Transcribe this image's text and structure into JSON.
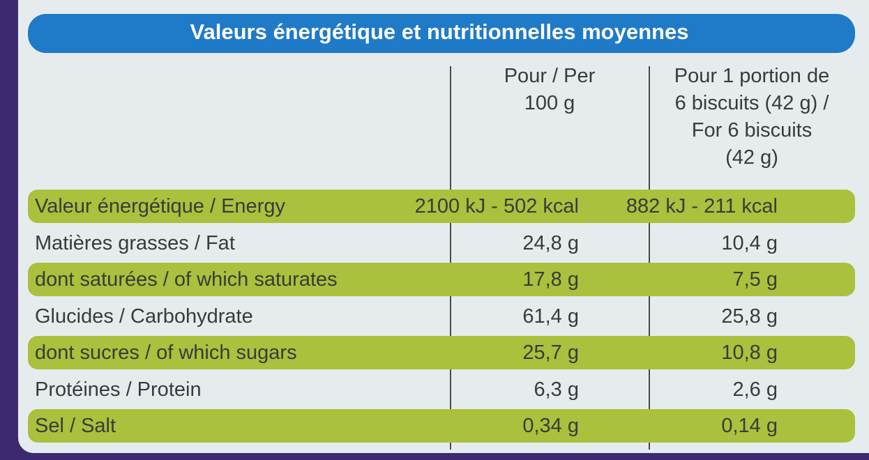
{
  "header": {
    "title": "Valeurs énergétique et nutritionnelles moyennes"
  },
  "table": {
    "headers": [
      [
        "Pour / Per",
        "100 g"
      ],
      [
        "Pour 1 portion de",
        "6 biscuits (42 g) /",
        "For 6 biscuits",
        "(42 g)"
      ]
    ],
    "rows": [
      [
        "Valeur énergétique / Energy",
        "2100 kJ - 502 kcal",
        "882 kJ - 211 kcal"
      ],
      [
        "Matières grasses / Fat",
        "24,8 g",
        "10,4 g"
      ],
      [
        "dont saturées / of which saturates",
        "17,8 g",
        "7,5 g"
      ],
      [
        "Glucides / Carbohydrate",
        "61,4 g",
        "25,8 g"
      ],
      [
        "dont sucres / of which sugars",
        "25,7 g",
        "10,8 g"
      ],
      [
        "Protéines / Protein",
        "6,3 g",
        "2,6 g"
      ],
      [
        "Sel / Salt",
        "0,34 g",
        "0,14 g"
      ]
    ]
  }
}
